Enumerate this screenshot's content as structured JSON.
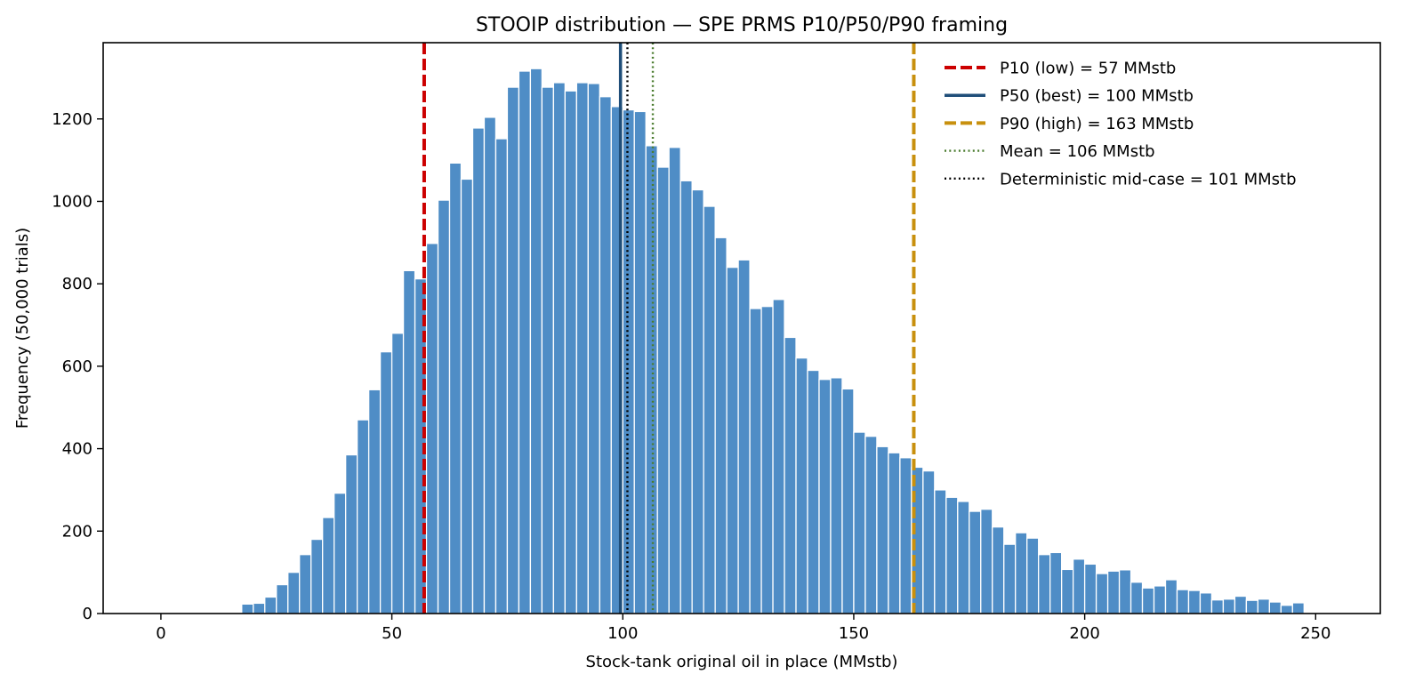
{
  "chart_data": {
    "type": "bar",
    "title": "STOOIP distribution — SPE PRMS P10/P50/P90 framing",
    "xlabel": "Stock-tank original oil in place  (MMstb)",
    "ylabel": "Frequency  (50,000 trials)",
    "xlim": [
      -12.5,
      264
    ],
    "ylim": [
      0,
      1385
    ],
    "xticks": [
      0,
      50,
      100,
      150,
      200,
      250
    ],
    "yticks": [
      0,
      200,
      400,
      600,
      800,
      1000,
      1200
    ],
    "bin_start": 17.5,
    "bin_width": 2.5,
    "bar_color": "#4f8dc6",
    "values": [
      23,
      25,
      40,
      70,
      100,
      143,
      180,
      233,
      292,
      385,
      470,
      543,
      635,
      680,
      832,
      812,
      898,
      1003,
      1093,
      1054,
      1178,
      1204,
      1152,
      1277,
      1316,
      1322,
      1277,
      1288,
      1268,
      1288,
      1286,
      1254,
      1230,
      1222,
      1218,
      1135,
      1083,
      1131,
      1050,
      1028,
      988,
      912,
      840,
      858,
      740,
      745,
      762,
      670,
      620,
      590,
      568,
      572,
      545,
      440,
      430,
      405,
      390,
      378,
      355,
      346,
      300,
      282,
      272,
      248,
      253,
      210,
      168,
      196,
      183,
      143,
      148,
      107,
      132,
      120,
      97,
      103,
      106,
      76,
      62,
      67,
      82,
      58,
      56,
      50,
      33,
      35,
      42,
      32,
      35,
      28,
      20,
      26
    ],
    "reference_lines": [
      {
        "label": "P10 (low) = 57 MMstb",
        "x": 57,
        "color": "#cc0000",
        "style": "dashed"
      },
      {
        "label": "P50 (best) = 100 MMstb",
        "x": 99.5,
        "color": "#1f4e79",
        "style": "solid"
      },
      {
        "label": "P90 (high) = 163 MMstb",
        "x": 163,
        "color": "#c8900e",
        "style": "dashed"
      },
      {
        "label": "Mean = 106 MMstb",
        "x": 106.5,
        "color": "#4a7c2e",
        "style": "dotted"
      },
      {
        "label": "Deterministic mid-case = 101 MMstb",
        "x": 101,
        "color": "#000000",
        "style": "dotted"
      }
    ],
    "legend": "top-right",
    "grid": false
  }
}
